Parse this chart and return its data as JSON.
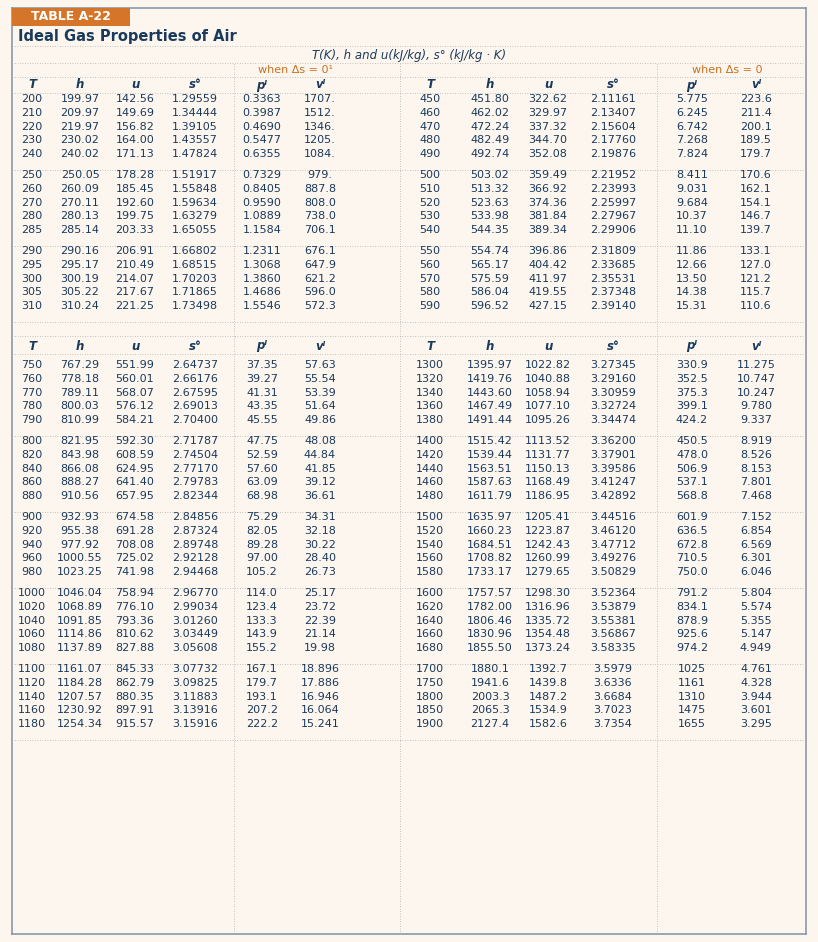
{
  "title_box": "TABLE A-22",
  "subtitle": "Ideal Gas Properties of Air",
  "top_center_label": "T(K), h and u(kJ/kg), s° (kJ/kg · K)",
  "when_ds0_left": "when Δs = 0¹",
  "when_ds0_right": "when Δs = 0",
  "bg_color": "#fdf6ee",
  "header_bg": "#d4752a",
  "table_text_color": "#1a3a5c",
  "section1": [
    [
      200,
      "199.97",
      "142.56",
      "1.29559",
      "0.3363",
      "1707."
    ],
    [
      210,
      "209.97",
      "149.69",
      "1.34444",
      "0.3987",
      "1512."
    ],
    [
      220,
      "219.97",
      "156.82",
      "1.39105",
      "0.4690",
      "1346."
    ],
    [
      230,
      "230.02",
      "164.00",
      "1.43557",
      "0.5477",
      "1205."
    ],
    [
      240,
      "240.02",
      "171.13",
      "1.47824",
      "0.6355",
      "1084."
    ]
  ],
  "section1_right": [
    [
      450,
      "451.80",
      "322.62",
      "2.11161",
      "5.775",
      "223.6"
    ],
    [
      460,
      "462.02",
      "329.97",
      "2.13407",
      "6.245",
      "211.4"
    ],
    [
      470,
      "472.24",
      "337.32",
      "2.15604",
      "6.742",
      "200.1"
    ],
    [
      480,
      "482.49",
      "344.70",
      "2.17760",
      "7.268",
      "189.5"
    ],
    [
      490,
      "492.74",
      "352.08",
      "2.19876",
      "7.824",
      "179.7"
    ]
  ],
  "section2": [
    [
      250,
      "250.05",
      "178.28",
      "1.51917",
      "0.7329",
      "979."
    ],
    [
      260,
      "260.09",
      "185.45",
      "1.55848",
      "0.8405",
      "887.8"
    ],
    [
      270,
      "270.11",
      "192.60",
      "1.59634",
      "0.9590",
      "808.0"
    ],
    [
      280,
      "280.13",
      "199.75",
      "1.63279",
      "1.0889",
      "738.0"
    ],
    [
      285,
      "285.14",
      "203.33",
      "1.65055",
      "1.1584",
      "706.1"
    ]
  ],
  "section2_right": [
    [
      500,
      "503.02",
      "359.49",
      "2.21952",
      "8.411",
      "170.6"
    ],
    [
      510,
      "513.32",
      "366.92",
      "2.23993",
      "9.031",
      "162.1"
    ],
    [
      520,
      "523.63",
      "374.36",
      "2.25997",
      "9.684",
      "154.1"
    ],
    [
      530,
      "533.98",
      "381.84",
      "2.27967",
      "10.37",
      "146.7"
    ],
    [
      540,
      "544.35",
      "389.34",
      "2.29906",
      "11.10",
      "139.7"
    ]
  ],
  "section3": [
    [
      290,
      "290.16",
      "206.91",
      "1.66802",
      "1.2311",
      "676.1"
    ],
    [
      295,
      "295.17",
      "210.49",
      "1.68515",
      "1.3068",
      "647.9"
    ],
    [
      300,
      "300.19",
      "214.07",
      "1.70203",
      "1.3860",
      "621.2"
    ],
    [
      305,
      "305.22",
      "217.67",
      "1.71865",
      "1.4686",
      "596.0"
    ],
    [
      310,
      "310.24",
      "221.25",
      "1.73498",
      "1.5546",
      "572.3"
    ]
  ],
  "section3_right": [
    [
      550,
      "554.74",
      "396.86",
      "2.31809",
      "11.86",
      "133.1"
    ],
    [
      560,
      "565.17",
      "404.42",
      "2.33685",
      "12.66",
      "127.0"
    ],
    [
      570,
      "575.59",
      "411.97",
      "2.35531",
      "13.50",
      "121.2"
    ],
    [
      580,
      "586.04",
      "419.55",
      "2.37348",
      "14.38",
      "115.7"
    ],
    [
      590,
      "596.52",
      "427.15",
      "2.39140",
      "15.31",
      "110.6"
    ]
  ],
  "section4": [
    [
      750,
      "767.29",
      "551.99",
      "2.64737",
      "37.35",
      "57.63"
    ],
    [
      760,
      "778.18",
      "560.01",
      "2.66176",
      "39.27",
      "55.54"
    ],
    [
      770,
      "789.11",
      "568.07",
      "2.67595",
      "41.31",
      "53.39"
    ],
    [
      780,
      "800.03",
      "576.12",
      "2.69013",
      "43.35",
      "51.64"
    ],
    [
      790,
      "810.99",
      "584.21",
      "2.70400",
      "45.55",
      "49.86"
    ]
  ],
  "section4_right": [
    [
      1300,
      "1395.97",
      "1022.82",
      "3.27345",
      "330.9",
      "11.275"
    ],
    [
      1320,
      "1419.76",
      "1040.88",
      "3.29160",
      "352.5",
      "10.747"
    ],
    [
      1340,
      "1443.60",
      "1058.94",
      "3.30959",
      "375.3",
      "10.247"
    ],
    [
      1360,
      "1467.49",
      "1077.10",
      "3.32724",
      "399.1",
      "9.780"
    ],
    [
      1380,
      "1491.44",
      "1095.26",
      "3.34474",
      "424.2",
      "9.337"
    ]
  ],
  "section5": [
    [
      800,
      "821.95",
      "592.30",
      "2.71787",
      "47.75",
      "48.08"
    ],
    [
      820,
      "843.98",
      "608.59",
      "2.74504",
      "52.59",
      "44.84"
    ],
    [
      840,
      "866.08",
      "624.95",
      "2.77170",
      "57.60",
      "41.85"
    ],
    [
      860,
      "888.27",
      "641.40",
      "2.79783",
      "63.09",
      "39.12"
    ],
    [
      880,
      "910.56",
      "657.95",
      "2.82344",
      "68.98",
      "36.61"
    ]
  ],
  "section5_right": [
    [
      1400,
      "1515.42",
      "1113.52",
      "3.36200",
      "450.5",
      "8.919"
    ],
    [
      1420,
      "1539.44",
      "1131.77",
      "3.37901",
      "478.0",
      "8.526"
    ],
    [
      1440,
      "1563.51",
      "1150.13",
      "3.39586",
      "506.9",
      "8.153"
    ],
    [
      1460,
      "1587.63",
      "1168.49",
      "3.41247",
      "537.1",
      "7.801"
    ],
    [
      1480,
      "1611.79",
      "1186.95",
      "3.42892",
      "568.8",
      "7.468"
    ]
  ],
  "section6": [
    [
      900,
      "932.93",
      "674.58",
      "2.84856",
      "75.29",
      "34.31"
    ],
    [
      920,
      "955.38",
      "691.28",
      "2.87324",
      "82.05",
      "32.18"
    ],
    [
      940,
      "977.92",
      "708.08",
      "2.89748",
      "89.28",
      "30.22"
    ],
    [
      960,
      "1000.55",
      "725.02",
      "2.92128",
      "97.00",
      "28.40"
    ],
    [
      980,
      "1023.25",
      "741.98",
      "2.94468",
      "105.2",
      "26.73"
    ]
  ],
  "section6_right": [
    [
      1500,
      "1635.97",
      "1205.41",
      "3.44516",
      "601.9",
      "7.152"
    ],
    [
      1520,
      "1660.23",
      "1223.87",
      "3.46120",
      "636.5",
      "6.854"
    ],
    [
      1540,
      "1684.51",
      "1242.43",
      "3.47712",
      "672.8",
      "6.569"
    ],
    [
      1560,
      "1708.82",
      "1260.99",
      "3.49276",
      "710.5",
      "6.301"
    ],
    [
      1580,
      "1733.17",
      "1279.65",
      "3.50829",
      "750.0",
      "6.046"
    ]
  ],
  "section7": [
    [
      1000,
      "1046.04",
      "758.94",
      "2.96770",
      "114.0",
      "25.17"
    ],
    [
      1020,
      "1068.89",
      "776.10",
      "2.99034",
      "123.4",
      "23.72"
    ],
    [
      1040,
      "1091.85",
      "793.36",
      "3.01260",
      "133.3",
      "22.39"
    ],
    [
      1060,
      "1114.86",
      "810.62",
      "3.03449",
      "143.9",
      "21.14"
    ],
    [
      1080,
      "1137.89",
      "827.88",
      "3.05608",
      "155.2",
      "19.98"
    ]
  ],
  "section7_right": [
    [
      1600,
      "1757.57",
      "1298.30",
      "3.52364",
      "791.2",
      "5.804"
    ],
    [
      1620,
      "1782.00",
      "1316.96",
      "3.53879",
      "834.1",
      "5.574"
    ],
    [
      1640,
      "1806.46",
      "1335.72",
      "3.55381",
      "878.9",
      "5.355"
    ],
    [
      1660,
      "1830.96",
      "1354.48",
      "3.56867",
      "925.6",
      "5.147"
    ],
    [
      1680,
      "1855.50",
      "1373.24",
      "3.58335",
      "974.2",
      "4.949"
    ]
  ],
  "section8": [
    [
      1100,
      "1161.07",
      "845.33",
      "3.07732",
      "167.1",
      "18.896"
    ],
    [
      1120,
      "1184.28",
      "862.79",
      "3.09825",
      "179.7",
      "17.886"
    ],
    [
      1140,
      "1207.57",
      "880.35",
      "3.11883",
      "193.1",
      "16.946"
    ],
    [
      1160,
      "1230.92",
      "897.91",
      "3.13916",
      "207.2",
      "16.064"
    ],
    [
      1180,
      "1254.34",
      "915.57",
      "3.15916",
      "222.2",
      "15.241"
    ]
  ],
  "section8_right": [
    [
      1700,
      "1880.1",
      "1392.7",
      "3.5979",
      "1025",
      "4.761"
    ],
    [
      1750,
      "1941.6",
      "1439.8",
      "3.6336",
      "1161",
      "4.328"
    ],
    [
      1800,
      "2003.3",
      "1487.2",
      "3.6684",
      "1310",
      "3.944"
    ],
    [
      1850,
      "2065.3",
      "1534.9",
      "3.7023",
      "1475",
      "3.601"
    ],
    [
      1900,
      "2127.4",
      "1582.6",
      "3.7354",
      "1655",
      "3.295"
    ]
  ]
}
